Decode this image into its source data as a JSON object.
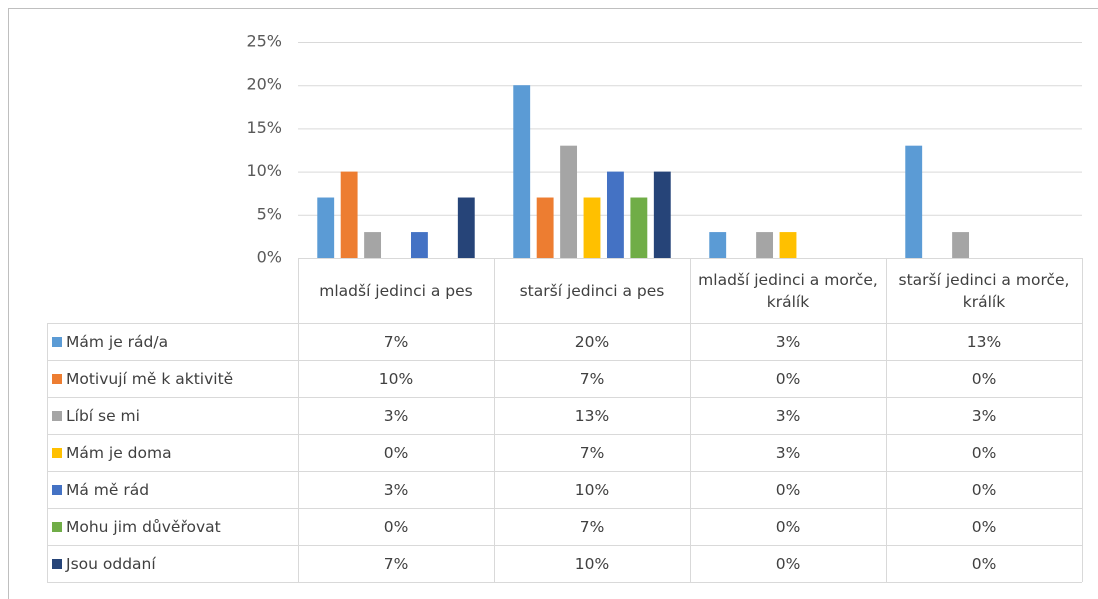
{
  "chart_data": {
    "type": "bar",
    "categories": [
      "mladší jedinci a pes",
      "starší jedinci a pes",
      "mladší jedinci a morče, králík",
      "starší jedinci a morče, králík"
    ],
    "series": [
      {
        "name": "Mám je rád/a",
        "color": "#5b9bd5",
        "values": [
          7,
          20,
          3,
          13
        ],
        "value_labels": [
          "7%",
          "20%",
          "3%",
          "13%"
        ]
      },
      {
        "name": "Motivují mě k aktivitě",
        "color": "#ed7d31",
        "values": [
          10,
          7,
          0,
          0
        ],
        "value_labels": [
          "10%",
          "7%",
          "0%",
          "0%"
        ]
      },
      {
        "name": "Líbí se mi",
        "color": "#a5a5a5",
        "values": [
          3,
          13,
          3,
          3
        ],
        "value_labels": [
          "3%",
          "13%",
          "3%",
          "3%"
        ]
      },
      {
        "name": "Mám je doma",
        "color": "#ffc000",
        "values": [
          0,
          7,
          3,
          0
        ],
        "value_labels": [
          "0%",
          "7%",
          "3%",
          "0%"
        ]
      },
      {
        "name": "Má mě rád",
        "color": "#4472c4",
        "values": [
          3,
          10,
          0,
          0
        ],
        "value_labels": [
          "3%",
          "10%",
          "0%",
          "0%"
        ]
      },
      {
        "name": "Mohu jim důvěřovat",
        "color": "#70ad47",
        "values": [
          0,
          7,
          0,
          0
        ],
        "value_labels": [
          "0%",
          "7%",
          "0%",
          "0%"
        ]
      },
      {
        "name": "Jsou oddaní",
        "color": "#264478",
        "values": [
          7,
          10,
          0,
          0
        ],
        "value_labels": [
          "7%",
          "10%",
          "0%",
          "0%"
        ]
      }
    ],
    "ylim": [
      0,
      25
    ],
    "yticks": [
      {
        "value": 0,
        "label": "0%"
      },
      {
        "value": 5,
        "label": "5%"
      },
      {
        "value": 10,
        "label": "10%"
      },
      {
        "value": 15,
        "label": "15%"
      },
      {
        "value": 20,
        "label": "20%"
      },
      {
        "value": 25,
        "label": "25%"
      }
    ],
    "grid": true
  }
}
